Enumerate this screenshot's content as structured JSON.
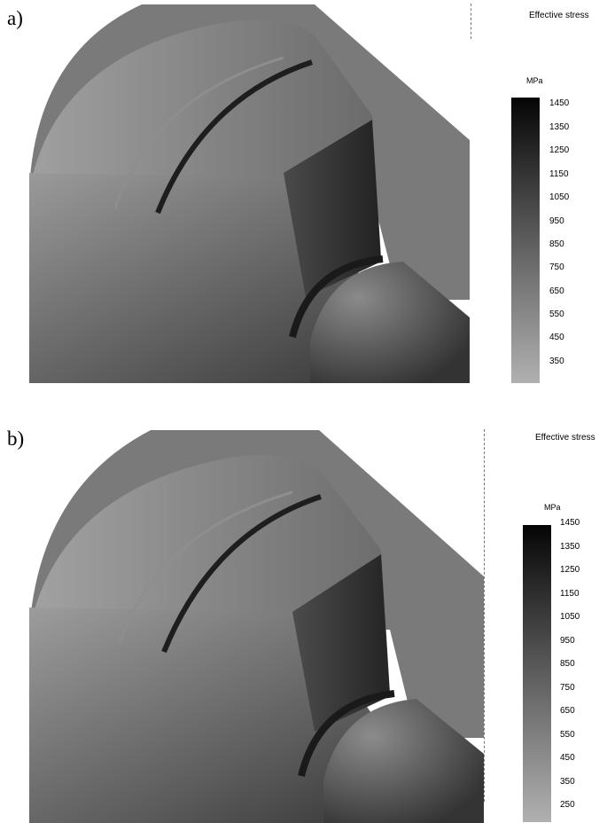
{
  "panels": [
    {
      "label": "a)",
      "legend_title": "Effective stress",
      "unit": "MPa",
      "scale_ticks": [
        "1450",
        "1350",
        "1250",
        "1150",
        "1050",
        "950",
        "850",
        "750",
        "650",
        "550",
        "450",
        "350"
      ]
    },
    {
      "label": "b)",
      "legend_title": "Effective stress",
      "unit": "MPa",
      "scale_ticks": [
        "1450",
        "1350",
        "1250",
        "1150",
        "1050",
        "950",
        "850",
        "750",
        "650",
        "550",
        "450",
        "350",
        "250"
      ]
    }
  ],
  "colors": {
    "max_stress": "#050505",
    "min_stress": "#b0b0b0",
    "background_part": "#7a7a7a"
  }
}
